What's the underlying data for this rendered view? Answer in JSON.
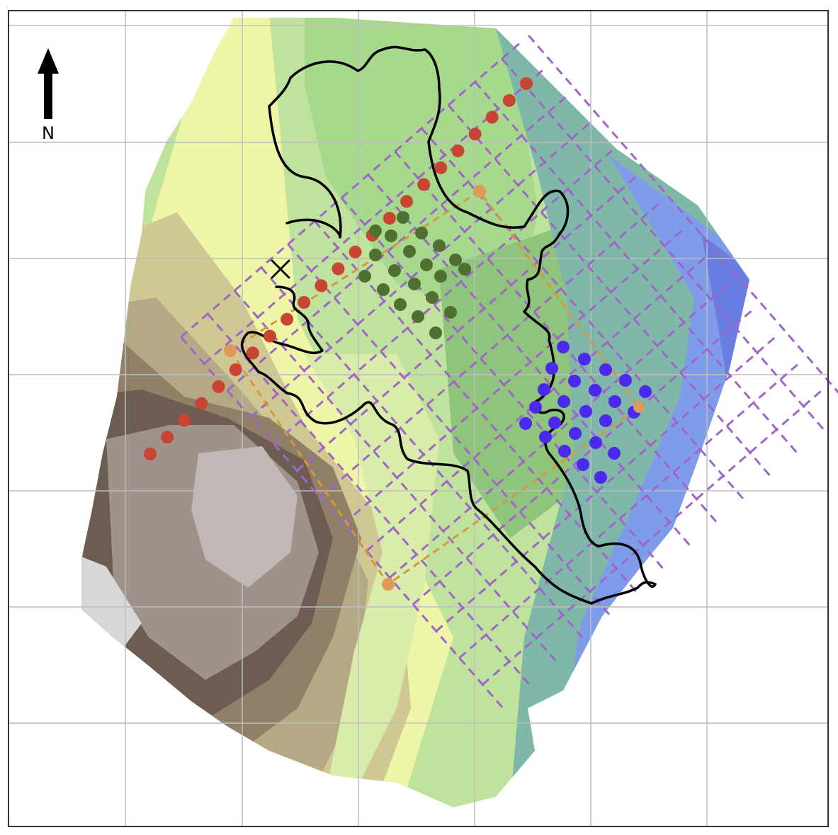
{
  "north_arrow": {
    "label": "N"
  },
  "colors": {
    "background": "#ffffff",
    "frame": "#333333",
    "grid": "#bdbdbd",
    "boundary": "#000000",
    "marker": "#111111",
    "red_points": "#c94433",
    "green_points": "#4f7030",
    "blue_points": "#4a28ee",
    "orange_points": "#de9a5a",
    "orange_lines": "#d9963d",
    "purple_lines": "#9e67c7",
    "terrain": [
      "#ffffff",
      "#d9d6d6",
      "#bfb8b5",
      "#9e928b",
      "#7d6c62",
      "#6d5c52",
      "#8f8067",
      "#b5a985",
      "#d0c893",
      "#e3e0a3",
      "#eff5a6",
      "#d9ecaa",
      "#bfe39d",
      "#a7d98d",
      "#93cc7e",
      "#8ec47b",
      "#7fb8a8",
      "#7aa5c8",
      "#7f9ceb",
      "#6a7de2"
    ]
  },
  "icons": {
    "north_arrow": "north-arrow-icon",
    "marker": "x-marker-icon"
  }
}
